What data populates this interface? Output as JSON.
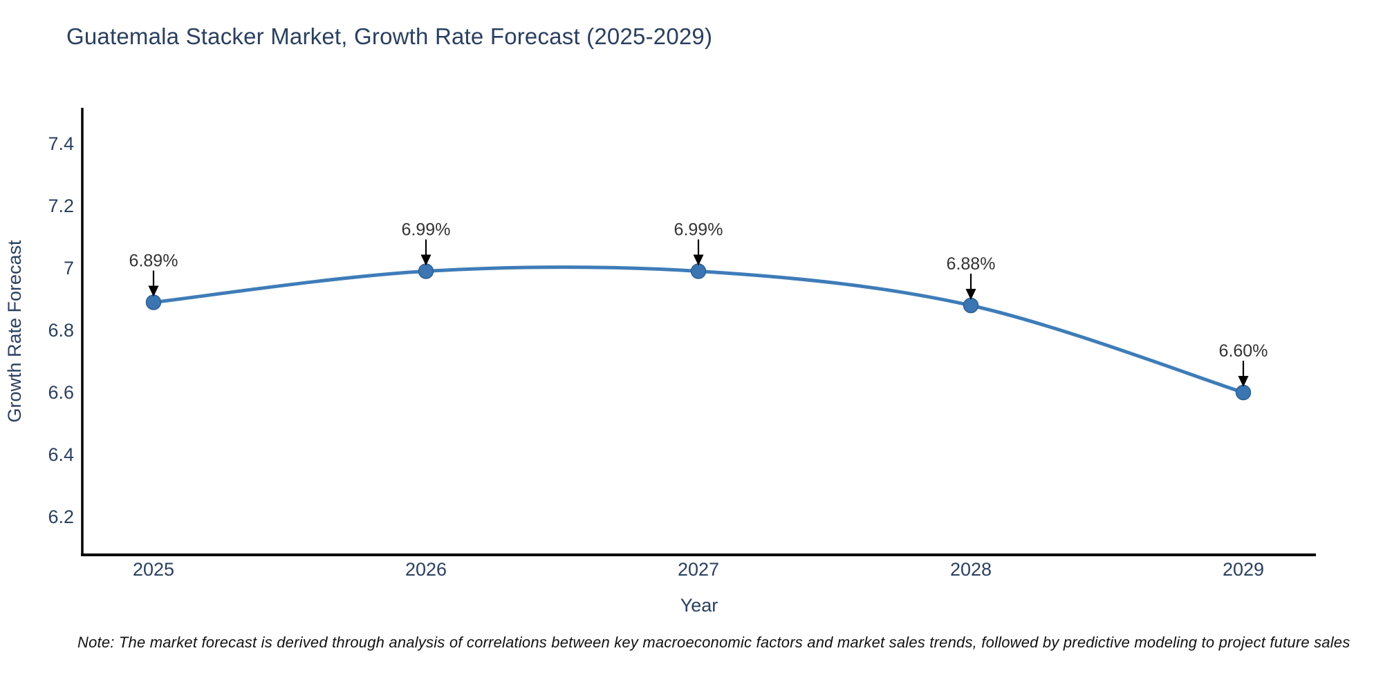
{
  "title": "Guatemala Stacker Market, Growth Rate Forecast (2025-2029)",
  "note": "Note: The market forecast is derived through analysis of correlations between key macroeconomic factors and market sales trends, followed by predictive modeling to project future sales",
  "chart_data": {
    "type": "line",
    "title": "Guatemala Stacker Market, Growth Rate Forecast (2025-2029)",
    "xlabel": "Year",
    "ylabel": "Growth Rate Forecast",
    "categories": [
      "2025",
      "2026",
      "2027",
      "2028",
      "2029"
    ],
    "values": [
      6.89,
      6.99,
      6.99,
      6.88,
      6.6
    ],
    "point_labels": [
      "6.89%",
      "6.99%",
      "6.99%",
      "6.88%",
      "6.60%"
    ],
    "ytick_values": [
      6.2,
      6.4,
      6.6,
      6.8,
      7.0,
      7.2,
      7.4
    ],
    "ytick_labels": [
      "6.2",
      "6.4",
      "6.6",
      "6.8",
      "7",
      "7.2",
      "7.4"
    ],
    "ylim": [
      6.07,
      7.51
    ],
    "grid": false,
    "legend_position": "none",
    "line_shape": "spline",
    "annotations_have_arrows": true,
    "colors": {
      "line": "#3E7CB8",
      "marker_fill": "#3B76B2",
      "marker_edge": "#2D5F94",
      "axis": "#000000",
      "tick_text": "#2a3f5f",
      "axis_title_text": "#2a3f5f",
      "title_text": "#2a3f5f",
      "annotation_text": "#333333",
      "arrow": "#000000",
      "background": "#ffffff"
    }
  }
}
